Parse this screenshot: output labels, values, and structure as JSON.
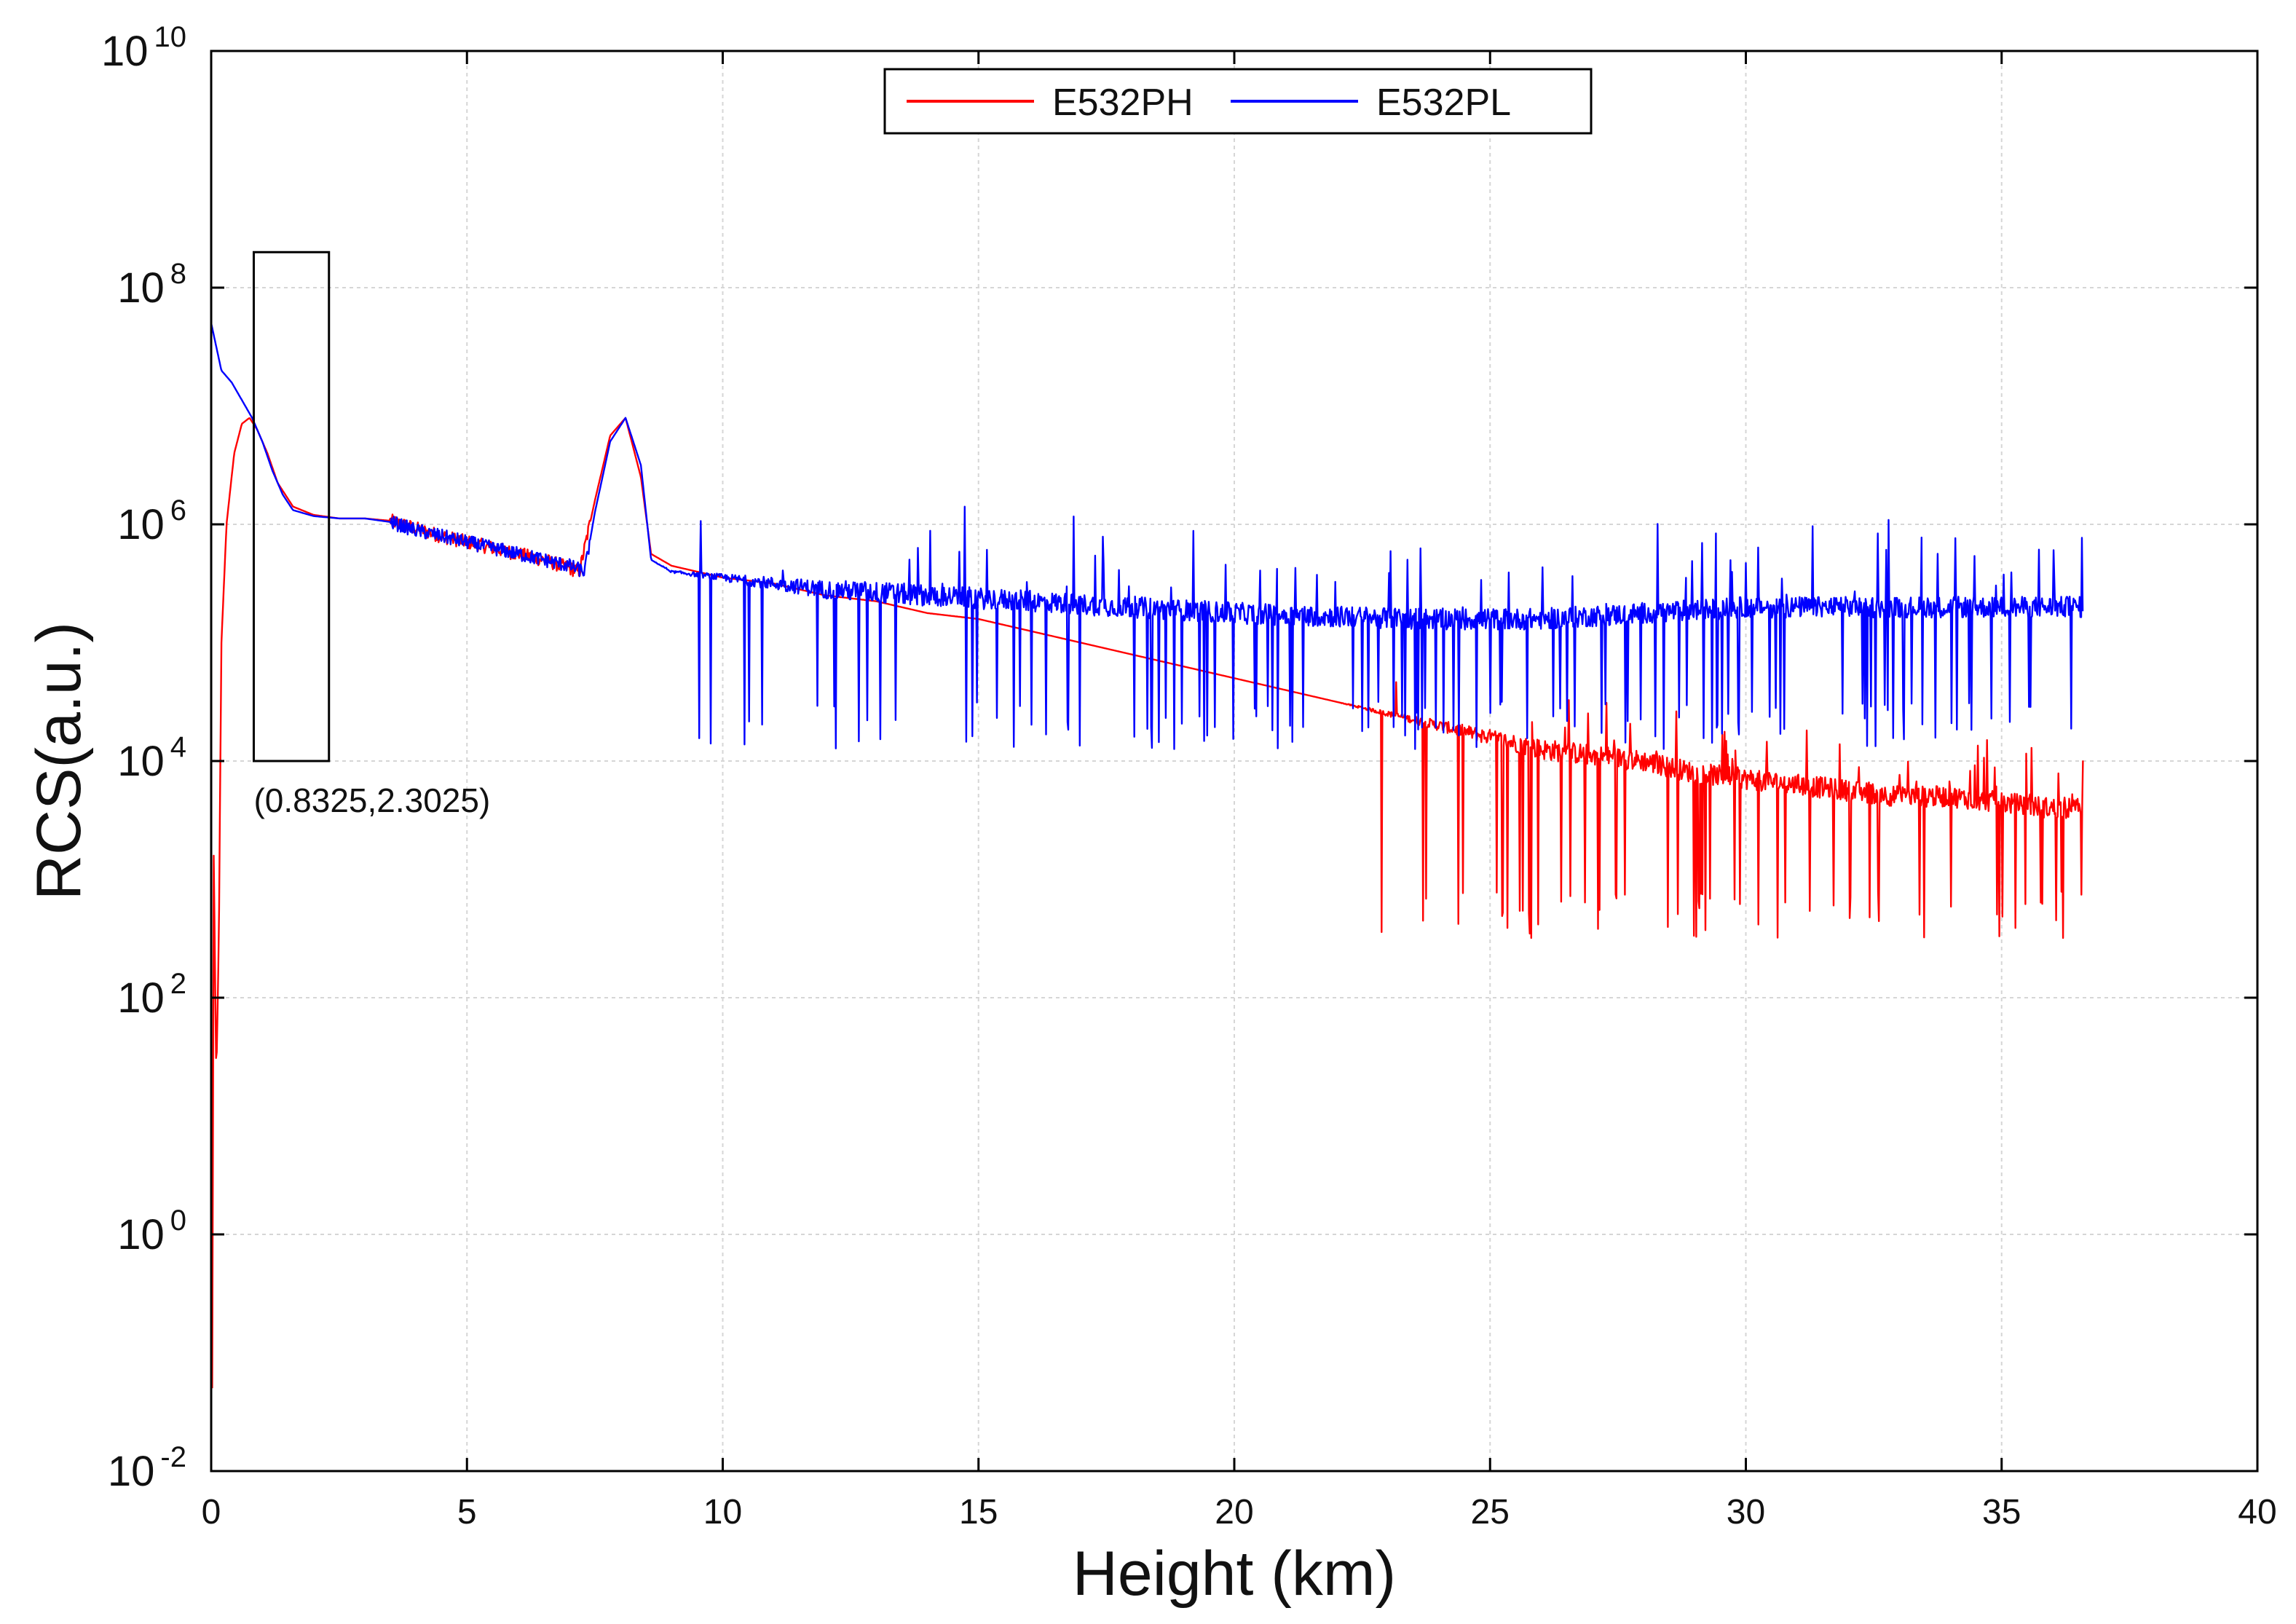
{
  "chart_data": {
    "type": "line",
    "title": "",
    "xlabel": "Height (km)",
    "ylabel": "RCS(a.u.)",
    "xlim": [
      0,
      40
    ],
    "ylim_log10": [
      -2,
      10
    ],
    "yscale": "log",
    "grid": true,
    "x_ticks": [
      0,
      5,
      10,
      15,
      20,
      25,
      30,
      35,
      40
    ],
    "x_tick_labels": [
      "0",
      "5",
      "10",
      "15",
      "20",
      "25",
      "30",
      "35",
      "40"
    ],
    "y_ticks_log10": [
      -2,
      0,
      2,
      4,
      6,
      8,
      10
    ],
    "y_tick_labels": [
      {
        "base": "10",
        "exp": "-2"
      },
      {
        "base": "10",
        "exp": "0"
      },
      {
        "base": "10",
        "exp": "2"
      },
      {
        "base": "10",
        "exp": "4"
      },
      {
        "base": "10",
        "exp": "6"
      },
      {
        "base": "10",
        "exp": "8"
      },
      {
        "base": "10",
        "exp": "10"
      }
    ],
    "legend": {
      "position": "top-center"
    },
    "series": [
      {
        "name": "E532PH",
        "color": "#ff0000",
        "points_log10": [
          [
            0.02,
            -1.3
          ],
          [
            0.05,
            3.2
          ],
          [
            0.1,
            1.3
          ],
          [
            0.15,
            2.5
          ],
          [
            0.2,
            5.0
          ],
          [
            0.3,
            6.0
          ],
          [
            0.45,
            6.6
          ],
          [
            0.6,
            6.85
          ],
          [
            0.75,
            6.9
          ],
          [
            0.9,
            6.8
          ],
          [
            1.1,
            6.6
          ],
          [
            1.3,
            6.35
          ],
          [
            1.6,
            6.15
          ],
          [
            2.0,
            6.08
          ],
          [
            2.5,
            6.05
          ],
          [
            3.0,
            6.05
          ],
          [
            3.5,
            6.03
          ],
          [
            4.5,
            5.9
          ],
          [
            5.5,
            5.8
          ],
          [
            6.5,
            5.7
          ],
          [
            7.2,
            5.6
          ],
          [
            7.5,
            6.2
          ],
          [
            7.8,
            6.75
          ],
          [
            8.1,
            6.9
          ],
          [
            8.4,
            6.4
          ],
          [
            8.6,
            5.75
          ],
          [
            9,
            5.65
          ],
          [
            10,
            5.55
          ],
          [
            11,
            5.5
          ],
          [
            12,
            5.4
          ],
          [
            13,
            5.35
          ],
          [
            14,
            5.25
          ],
          [
            15,
            5.2
          ],
          [
            16,
            5.1
          ],
          [
            17,
            5.0
          ],
          [
            18,
            4.9
          ],
          [
            19,
            4.8
          ],
          [
            20,
            4.7
          ],
          [
            21,
            4.6
          ],
          [
            22,
            4.5
          ],
          [
            23,
            4.4
          ],
          [
            24,
            4.3
          ],
          [
            25,
            4.2
          ],
          [
            26,
            4.1
          ],
          [
            27,
            4.05
          ],
          [
            28,
            4.0
          ],
          [
            29,
            3.9
          ],
          [
            30,
            3.85
          ],
          [
            31,
            3.8
          ],
          [
            32,
            3.75
          ],
          [
            33,
            3.7
          ],
          [
            34,
            3.7
          ],
          [
            35,
            3.65
          ],
          [
            36,
            3.6
          ],
          [
            36.6,
            3.6
          ]
        ],
        "noise_start": 22,
        "noise_amplitude_log10": 0.5,
        "dip_floor_log10": 2.5
      },
      {
        "name": "E532PL",
        "color": "#0000ff",
        "points_log10": [
          [
            0.0,
            7.7
          ],
          [
            0.1,
            7.5
          ],
          [
            0.2,
            7.3
          ],
          [
            0.4,
            7.2
          ],
          [
            0.6,
            7.05
          ],
          [
            0.8,
            6.9
          ],
          [
            1.0,
            6.7
          ],
          [
            1.2,
            6.45
          ],
          [
            1.4,
            6.25
          ],
          [
            1.6,
            6.12
          ],
          [
            2.0,
            6.07
          ],
          [
            2.5,
            6.05
          ],
          [
            3.0,
            6.05
          ],
          [
            3.5,
            6.02
          ],
          [
            4.0,
            5.95
          ],
          [
            5.0,
            5.85
          ],
          [
            6.0,
            5.75
          ],
          [
            7.0,
            5.65
          ],
          [
            7.3,
            5.6
          ],
          [
            7.5,
            6.1
          ],
          [
            7.8,
            6.7
          ],
          [
            8.1,
            6.9
          ],
          [
            8.4,
            6.5
          ],
          [
            8.6,
            5.7
          ],
          [
            9,
            5.6
          ],
          [
            10,
            5.55
          ],
          [
            11,
            5.5
          ],
          [
            12,
            5.45
          ],
          [
            14,
            5.4
          ],
          [
            16,
            5.35
          ],
          [
            18,
            5.3
          ],
          [
            20,
            5.25
          ],
          [
            22,
            5.22
          ],
          [
            24,
            5.2
          ],
          [
            26,
            5.2
          ],
          [
            28,
            5.25
          ],
          [
            30,
            5.3
          ],
          [
            32,
            5.3
          ],
          [
            34,
            5.3
          ],
          [
            36,
            5.3
          ],
          [
            36.6,
            5.3
          ]
        ],
        "noise_start": 8.6,
        "noise_amplitude_log10": 0.7,
        "dip_floor_log10": 4.1
      }
    ],
    "annotation": {
      "label": "(0.8325,2.3025)",
      "box_x": [
        0.8325,
        2.3025
      ],
      "box_y_log10": [
        4,
        8.3
      ]
    }
  }
}
